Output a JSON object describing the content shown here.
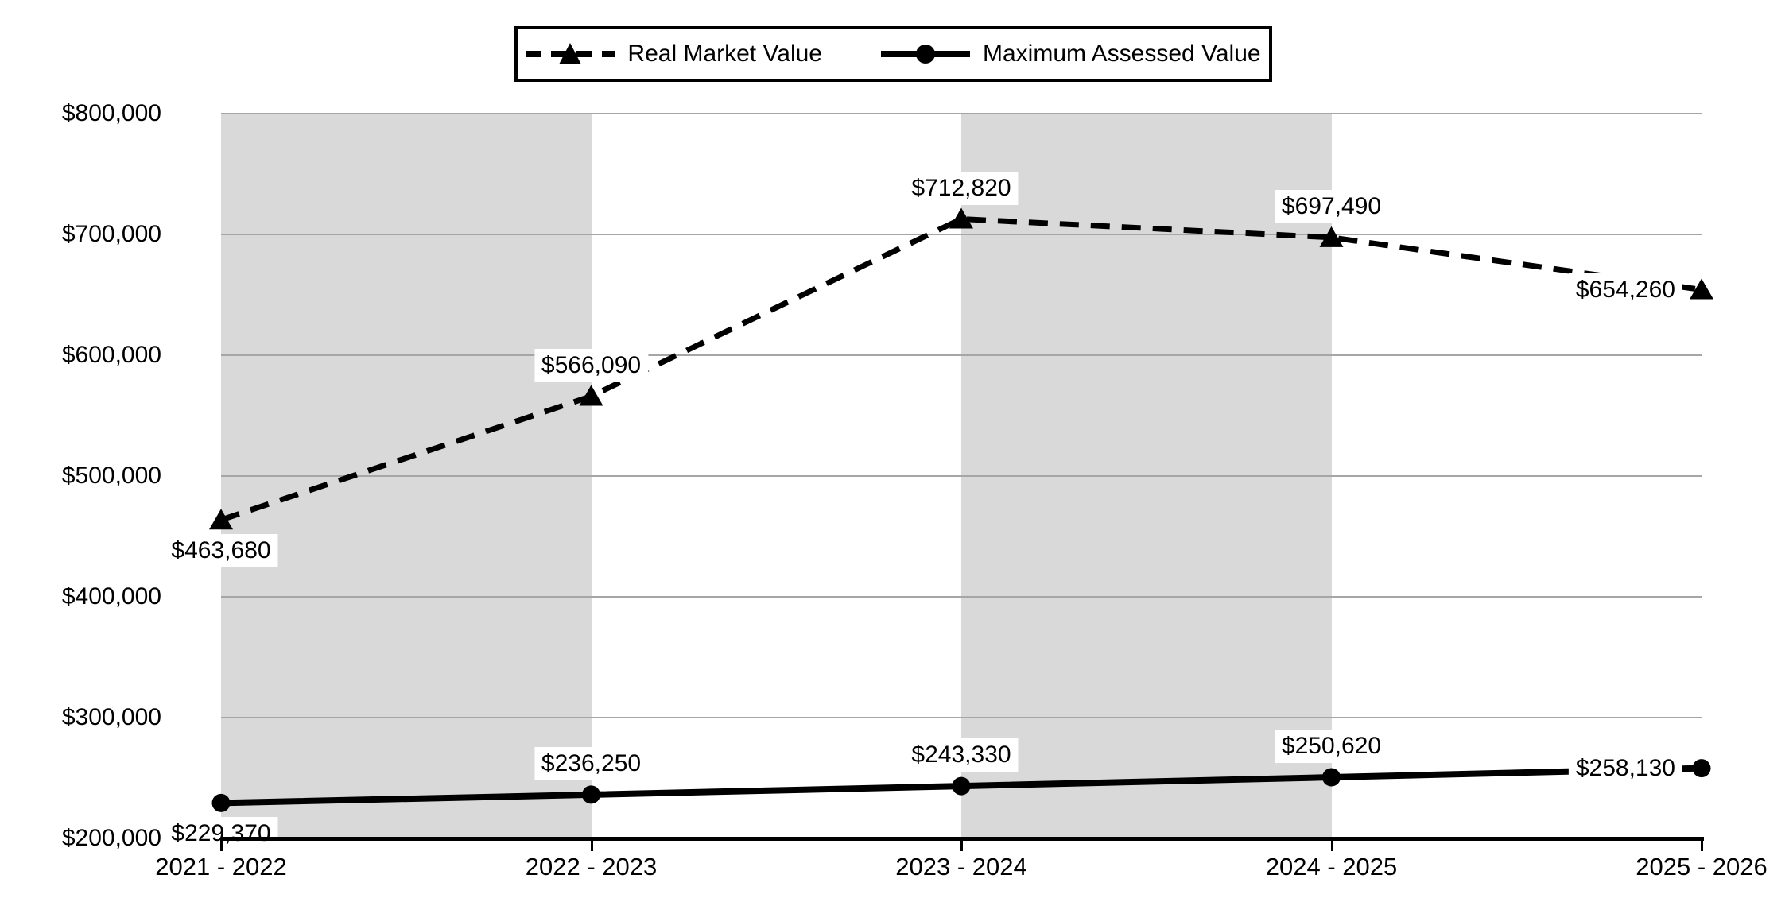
{
  "chart_data": {
    "type": "line",
    "title": "",
    "categories": [
      "2021 - 2022",
      "2022 - 2023",
      "2023 - 2024",
      "2024 - 2025",
      "2025 - 2026"
    ],
    "series": [
      {
        "name": "Real Market Value",
        "line_style": "dashed",
        "marker": "triangle",
        "values": [
          463680,
          566090,
          712820,
          697490,
          654260
        ],
        "data_labels": [
          "$463,680",
          "$566,090",
          "$712,820",
          "$697,490",
          "$654,260"
        ],
        "label_positions": [
          "below",
          "above",
          "above",
          "above",
          "left"
        ]
      },
      {
        "name": "Maximum Assessed Value",
        "line_style": "solid",
        "marker": "circle",
        "values": [
          229370,
          236250,
          243330,
          250620,
          258130
        ],
        "data_labels": [
          "$229,370",
          "$236,250",
          "$243,330",
          "$250,620",
          "$258,130"
        ],
        "label_positions": [
          "below",
          "above",
          "above",
          "above",
          "left"
        ]
      }
    ],
    "y_axis": {
      "min": 200000,
      "max": 800000,
      "step": 100000,
      "tick_labels": [
        "$200,000",
        "$300,000",
        "$400,000",
        "$500,000",
        "$600,000",
        "$700,000",
        "$800,000"
      ]
    },
    "x_axis": {
      "tick_labels": [
        "2021 - 2022",
        "2022 - 2023",
        "2023 - 2024",
        "2024 - 2025",
        "2025 - 2026"
      ]
    },
    "legend": {
      "position": "top",
      "entries": [
        "Real Market Value",
        "Maximum Assessed Value"
      ]
    },
    "shaded_bands": [
      [
        0,
        1
      ],
      [
        2,
        3
      ]
    ],
    "grid": true,
    "colors": {
      "series": "#000000",
      "gridline": "#a6a6a6",
      "band": "#d9d9d9",
      "background": "#ffffff",
      "label_background": "#ffffff"
    }
  }
}
